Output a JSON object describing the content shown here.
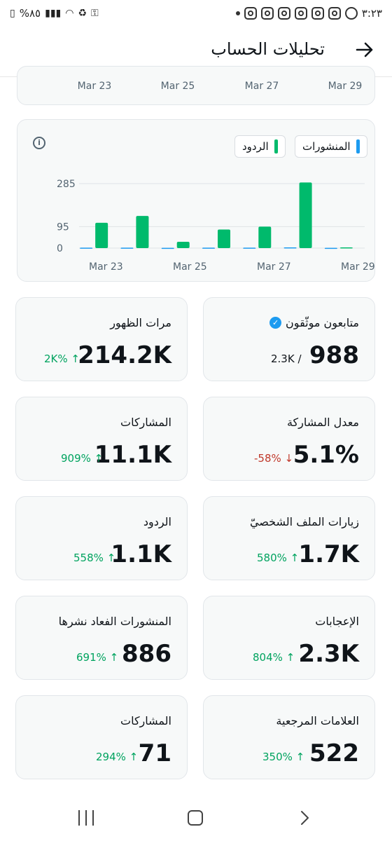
{
  "status_bar": {
    "battery": "%٨٥",
    "time": "٣:٢٣"
  },
  "header": {
    "title": "تحليلات الحساب"
  },
  "top_card": {
    "dates": [
      "Mar 23",
      "Mar 25",
      "Mar 27",
      "Mar 29"
    ]
  },
  "chart_card": {
    "legend": [
      {
        "label": "المنشورات",
        "color": "#1d9bf0"
      },
      {
        "label": "الردود",
        "color": "#00ba6c"
      }
    ]
  },
  "chart_data": {
    "type": "bar",
    "categories": [
      "Mar 23",
      "Mar 24",
      "Mar 25",
      "Mar 26",
      "Mar 27",
      "Mar 28",
      "Mar 29"
    ],
    "x_tick_labels": [
      "Mar 23",
      "Mar 25",
      "Mar 27",
      "Mar 29"
    ],
    "y_ticks": [
      0,
      95,
      285
    ],
    "ylim": [
      0,
      285
    ],
    "series": [
      {
        "name": "المنشورات",
        "color": "#1d9bf0",
        "values": [
          2,
          2,
          1,
          2,
          2,
          3,
          1
        ]
      },
      {
        "name": "الردود",
        "color": "#00ba6c",
        "values": [
          112,
          142,
          28,
          82,
          95,
          290,
          3
        ]
      }
    ]
  },
  "stats": [
    {
      "label": "متابعون موثّقون",
      "value": "988",
      "sub": "2.3K /",
      "verified": true
    },
    {
      "label": "مرات الظهور",
      "value": "214.2K",
      "change": "2K% ↑",
      "direction": "up"
    },
    {
      "label": "معدل المشاركة",
      "value": "5.1%",
      "change": "-58% ↓",
      "direction": "down"
    },
    {
      "label": "المشاركات",
      "value": "11.1K",
      "change": "909% ↑",
      "direction": "up"
    },
    {
      "label": "زيارات الملف الشخصيّ",
      "value": "1.7K",
      "change": "580% ↑",
      "direction": "up"
    },
    {
      "label": "الردود",
      "value": "1.1K",
      "change": "558% ↑",
      "direction": "up"
    },
    {
      "label": "الإعجابات",
      "value": "2.3K",
      "change": "804% ↑",
      "direction": "up"
    },
    {
      "label": "المنشورات الفعاد نشرها",
      "value": "886",
      "change": "691% ↑",
      "direction": "up"
    },
    {
      "label": "العلامات المرجعية",
      "value": "522",
      "change": "350% ↑",
      "direction": "up"
    },
    {
      "label": "المشاركات",
      "value": "71",
      "change": "294% ↑",
      "direction": "up"
    }
  ],
  "icons": {
    "status": [
      "sim-icon",
      "signal-icon",
      "wifi-icon",
      "battery-saver-icon",
      "key-icon",
      "instagram-icon",
      "whatsapp-icon"
    ],
    "header": "arrow-right-icon",
    "nav": [
      "recent-apps-icon",
      "home-icon",
      "back-icon"
    ]
  }
}
